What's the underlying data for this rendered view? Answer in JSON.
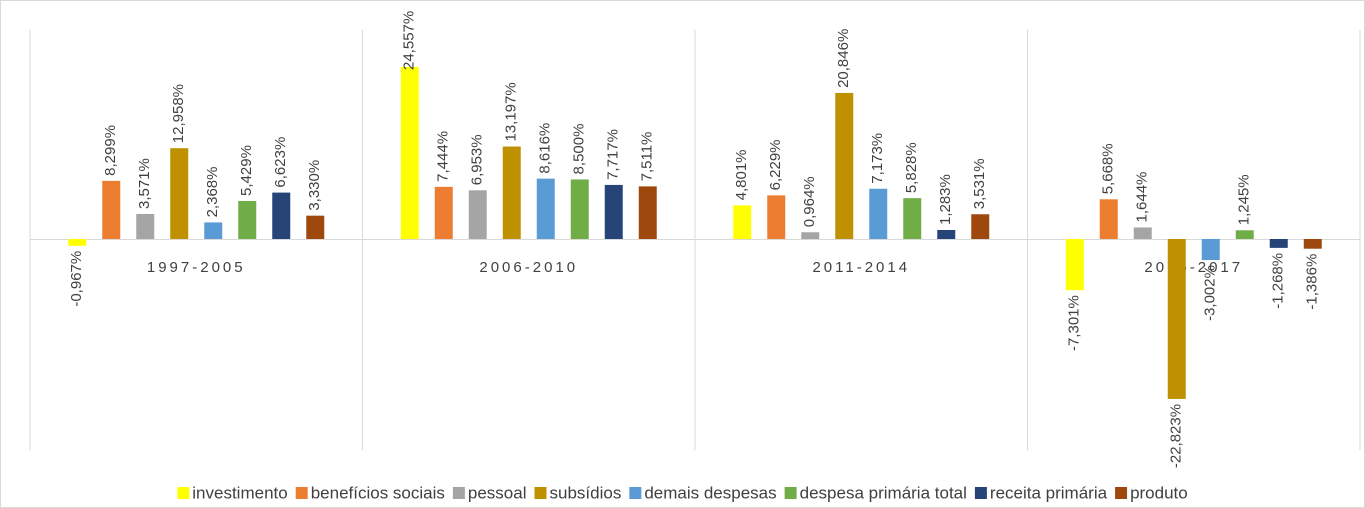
{
  "chart_data": {
    "type": "bar",
    "categories": [
      "1997-2005",
      "2006-2010",
      "2011-2014",
      "2015-2017"
    ],
    "series": [
      {
        "name": "investimento",
        "color": "#ffff00",
        "values": [
          -0.967,
          24.557,
          4.801,
          -7.301
        ],
        "value_labels": [
          "-0,967%",
          "24,557%",
          "4,801%",
          "-7,301%"
        ]
      },
      {
        "name": "benefícios sociais",
        "color": "#ed7d31",
        "values": [
          8.299,
          7.444,
          6.229,
          5.668
        ],
        "value_labels": [
          "8,299%",
          "7,444%",
          "6,229%",
          "5,668%"
        ]
      },
      {
        "name": "pessoal",
        "color": "#a5a5a5",
        "values": [
          3.571,
          6.953,
          0.964,
          1.644
        ],
        "value_labels": [
          "3,571%",
          "6,953%",
          "0,964%",
          "1,644%"
        ]
      },
      {
        "name": "subsídios",
        "color": "#bf9000",
        "values": [
          12.958,
          13.197,
          20.846,
          -22.823
        ],
        "value_labels": [
          "12,958%",
          "13,197%",
          "20,846%",
          "-22,823%"
        ]
      },
      {
        "name": "demais despesas",
        "color": "#5b9bd5",
        "values": [
          2.368,
          8.616,
          7.173,
          -3.002
        ],
        "value_labels": [
          "2,368%",
          "8,616%",
          "7,173%",
          "-3,002%"
        ]
      },
      {
        "name": "despesa primária total",
        "color": "#70ad47",
        "values": [
          5.429,
          8.5,
          5.828,
          1.245
        ],
        "value_labels": [
          "5,429%",
          "8,500%",
          "5,828%",
          "1,245%"
        ]
      },
      {
        "name": "receita primária",
        "color": "#264478",
        "values": [
          6.623,
          7.717,
          1.283,
          -1.268
        ],
        "value_labels": [
          "6,623%",
          "7,717%",
          "1,283%",
          "-1,268%"
        ]
      },
      {
        "name": "produto",
        "color": "#9e480e",
        "values": [
          3.33,
          7.511,
          3.531,
          -1.386
        ],
        "value_labels": [
          "3,330%",
          "7,511%",
          "3,531%",
          "-1,386%"
        ]
      }
    ],
    "legend": "bottom"
  }
}
